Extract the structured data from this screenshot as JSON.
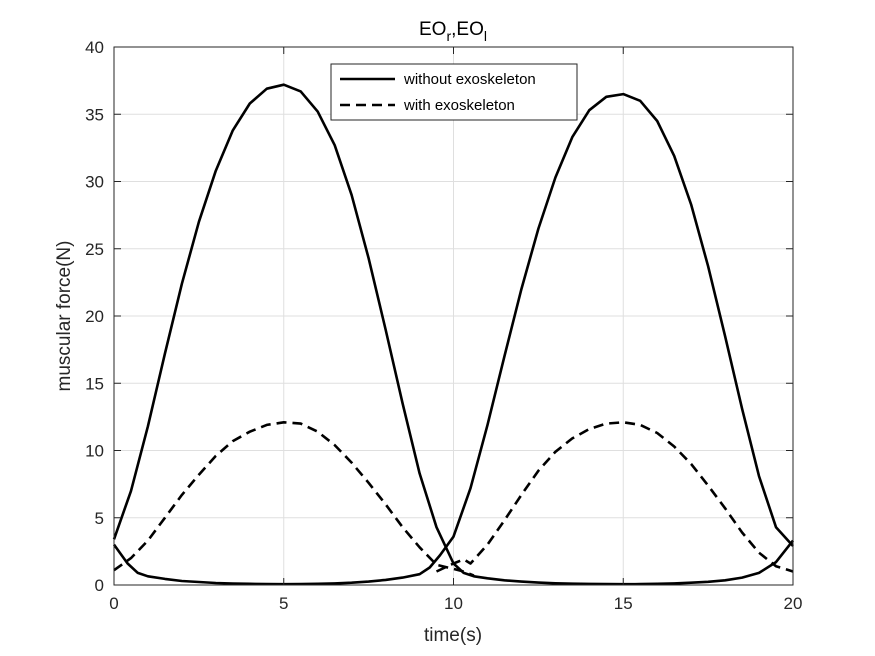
{
  "chart_data": {
    "type": "line",
    "title": {
      "base1": "EO",
      "sub1": "r",
      "sep": ",",
      "base2": "EO",
      "sub2": "l"
    },
    "xlabel": "time(s)",
    "ylabel": "muscular force(N)",
    "xlim": [
      0,
      20
    ],
    "ylim": [
      0,
      40
    ],
    "xticks": [
      0,
      5,
      10,
      15,
      20
    ],
    "yticks": [
      0,
      5,
      10,
      15,
      20,
      25,
      30,
      35,
      40
    ],
    "grid": true,
    "legend_position": "top-center",
    "series": [
      {
        "name": "without exoskeleton",
        "style": "solid",
        "color": "#000000",
        "x": [
          0,
          0.5,
          1,
          1.5,
          2,
          2.5,
          3,
          3.5,
          4,
          4.5,
          5,
          5.5,
          6,
          6.5,
          7,
          7.5,
          8,
          8.5,
          9,
          9.5,
          10,
          10.3,
          10.6,
          11,
          11.5,
          12,
          12.5,
          13,
          13.5,
          14,
          14.5,
          15,
          15.5,
          16,
          16.5,
          17,
          17.5,
          18,
          18.5,
          19,
          19.5,
          20
        ],
        "y": [
          3.4,
          7.0,
          11.8,
          17.2,
          22.4,
          27.0,
          30.8,
          33.8,
          35.8,
          36.9,
          37.2,
          36.7,
          35.2,
          32.7,
          29.0,
          24.3,
          19.0,
          13.5,
          8.3,
          4.3,
          1.6,
          0.9,
          0.65,
          0.5,
          0.35,
          0.25,
          0.18,
          0.13,
          0.1,
          0.08,
          0.07,
          0.06,
          0.07,
          0.09,
          0.12,
          0.17,
          0.24,
          0.35,
          0.55,
          0.9,
          1.7,
          3.3
        ]
      },
      {
        "name": "without exoskeleton",
        "style": "solid",
        "color": "#000000",
        "x": [
          0,
          0.4,
          0.7,
          1,
          1.5,
          2,
          2.5,
          3,
          3.5,
          4,
          4.5,
          5,
          5.5,
          6,
          6.5,
          7,
          7.5,
          8,
          8.5,
          9,
          9.3,
          9.6,
          9.8,
          10,
          10.5,
          11,
          11.5,
          12,
          12.5,
          13,
          13.5,
          14,
          14.5,
          15,
          15.5,
          16,
          16.5,
          17,
          17.5,
          18,
          18.5,
          19,
          19.5,
          20
        ],
        "y": [
          3.0,
          1.6,
          0.9,
          0.65,
          0.45,
          0.3,
          0.22,
          0.15,
          0.11,
          0.09,
          0.07,
          0.06,
          0.07,
          0.09,
          0.12,
          0.17,
          0.25,
          0.38,
          0.55,
          0.8,
          1.3,
          2.2,
          2.9,
          3.6,
          7.2,
          11.9,
          17.0,
          22.0,
          26.5,
          30.3,
          33.3,
          35.3,
          36.3,
          36.5,
          36.0,
          34.5,
          31.9,
          28.3,
          23.7,
          18.5,
          13.1,
          8.1,
          4.3,
          2.9
        ]
      },
      {
        "name": "with exoskeleton",
        "style": "dashed",
        "color": "#000000",
        "x": [
          0,
          0.5,
          1,
          1.5,
          2,
          2.5,
          3,
          3.5,
          4,
          4.5,
          5,
          5.5,
          6,
          6.5,
          7,
          7.5,
          8,
          8.5,
          9,
          9.5,
          10,
          10.3,
          10.6
        ],
        "y": [
          1.1,
          2.0,
          3.3,
          5.0,
          6.7,
          8.2,
          9.6,
          10.7,
          11.4,
          11.9,
          12.1,
          12.0,
          11.4,
          10.4,
          9.1,
          7.6,
          6.0,
          4.3,
          2.8,
          1.5,
          1.2,
          1.0,
          0.7
        ]
      },
      {
        "name": "with exoskeleton",
        "style": "dashed",
        "color": "#000000",
        "x": [
          9.5,
          10,
          10.3,
          10.5,
          11,
          11.5,
          12,
          12.5,
          13,
          13.5,
          14,
          14.5,
          15,
          15.5,
          16,
          16.5,
          17,
          17.5,
          18,
          18.5,
          19,
          19.5,
          20
        ],
        "y": [
          1.0,
          1.6,
          1.9,
          1.6,
          3.0,
          4.8,
          6.7,
          8.5,
          9.9,
          10.9,
          11.6,
          12.0,
          12.1,
          11.9,
          11.3,
          10.3,
          9.0,
          7.4,
          5.7,
          3.9,
          2.4,
          1.4,
          1.0
        ]
      }
    ],
    "legend": [
      {
        "label": "without exoskeleton",
        "style": "solid"
      },
      {
        "label": "with exoskeleton",
        "style": "dashed"
      }
    ]
  }
}
